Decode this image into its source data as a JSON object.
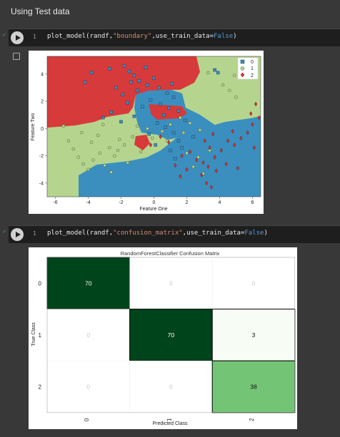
{
  "section_title": "Using Test data",
  "cells": [
    {
      "line_no": "1",
      "code_prefix": "plot_model(randf,",
      "code_str": "\"boundary\"",
      "code_mid": ",use_train_data=",
      "code_kw": "False",
      "code_suffix": ")"
    },
    {
      "line_no": "1",
      "code_prefix": "plot_model(randf,",
      "code_str": "\"confusion_matrix\"",
      "code_mid": ",use_train_data=",
      "code_kw": "False",
      "code_suffix": ")"
    }
  ],
  "colors": {
    "class0": "#3a8fbf",
    "class1": "#b5d58f",
    "class2": "#d63a3a",
    "cm_dark": "#00441b",
    "cm_light": "#f7fcf5",
    "cm_mid": "#74c476"
  },
  "chart_data": [
    {
      "type": "scatter",
      "title": "",
      "xlabel": "Feature One",
      "ylabel": "Feature Two",
      "xlim": [
        -6.5,
        6.5
      ],
      "ylim": [
        -5,
        5.3
      ],
      "xticks": [
        "-6",
        "-4",
        "-2",
        "0",
        "2",
        "4",
        "6"
      ],
      "yticks": [
        "4",
        "2",
        "0",
        "-2",
        "-4"
      ],
      "legend_position": "top-right",
      "legend": [
        "0",
        "1",
        "2"
      ],
      "series": [
        {
          "name": "0",
          "marker": "square",
          "points": [
            [
              -1.8,
              4.6
            ],
            [
              -1.5,
              4.2
            ],
            [
              -1.2,
              3.9
            ],
            [
              -0.9,
              3.5
            ],
            [
              -0.4,
              3.2
            ],
            [
              0.3,
              3.0
            ],
            [
              0.8,
              2.6
            ],
            [
              1.2,
              2.3
            ],
            [
              -2.3,
              3.0
            ],
            [
              -1.0,
              2.8
            ],
            [
              -0.2,
              2.1
            ],
            [
              0.4,
              1.8
            ],
            [
              0.9,
              1.5
            ],
            [
              1.5,
              1.3
            ],
            [
              -1.6,
              1.9
            ],
            [
              -0.7,
              1.6
            ],
            [
              -1.2,
              0.9
            ],
            [
              -2.0,
              0.5
            ],
            [
              0.2,
              0.4
            ],
            [
              0.7,
              0.1
            ],
            [
              1.2,
              -0.3
            ],
            [
              1.5,
              -0.9
            ],
            [
              1.0,
              -1.6
            ],
            [
              1.3,
              -2.2
            ],
            [
              -3.8,
              4.1
            ],
            [
              -4.2,
              3.4
            ],
            [
              -2.7,
              4.4
            ],
            [
              -0.5,
              4.5
            ],
            [
              0.0,
              3.7
            ],
            [
              -1.9,
              2.5
            ],
            [
              0.6,
              1.0
            ],
            [
              -0.3,
              -0.4
            ],
            [
              1.9,
              0.6
            ],
            [
              3.7,
              4.3
            ],
            [
              3.9,
              4.1
            ],
            [
              1.1,
              3.3
            ],
            [
              -2.6,
              1.2
            ],
            [
              0.1,
              -1.2
            ],
            [
              1.7,
              -1.4
            ],
            [
              2.4,
              -0.6
            ],
            [
              -1.4,
              3.4
            ],
            [
              -3.1,
              0.8
            ]
          ]
        },
        {
          "name": "1",
          "marker": "circle",
          "points": [
            [
              -4.6,
              -2.1
            ],
            [
              -4.3,
              -2.6
            ],
            [
              -4.0,
              -3.0
            ],
            [
              -3.7,
              -2.3
            ],
            [
              -3.3,
              -1.8
            ],
            [
              -3.0,
              -2.7
            ],
            [
              -2.7,
              -1.4
            ],
            [
              -2.4,
              -2.0
            ],
            [
              -2.1,
              -0.8
            ],
            [
              -1.8,
              -1.2
            ],
            [
              -4.9,
              -1.5
            ],
            [
              -5.2,
              -0.9
            ],
            [
              -3.8,
              -1.0
            ],
            [
              -3.4,
              -0.5
            ],
            [
              -2.6,
              -3.2
            ],
            [
              -1.6,
              -2.5
            ],
            [
              -1.3,
              -0.6
            ],
            [
              -0.4,
              0.0
            ],
            [
              -0.1,
              -0.7
            ],
            [
              0.5,
              -0.2
            ],
            [
              1.0,
              0.3
            ],
            [
              1.6,
              0.8
            ],
            [
              2.2,
              0.4
            ],
            [
              2.8,
              -0.1
            ],
            [
              4.2,
              3.2
            ],
            [
              4.6,
              2.8
            ],
            [
              5.0,
              2.3
            ],
            [
              4.9,
              3.9
            ],
            [
              3.3,
              4.1
            ],
            [
              -5.5,
              0.2
            ],
            [
              2.0,
              -1.8
            ],
            [
              2.4,
              -2.8
            ],
            [
              3.0,
              -3.3
            ],
            [
              2.7,
              -2.1
            ],
            [
              -4.4,
              -0.3
            ],
            [
              -3.1,
              0.3
            ],
            [
              -2.2,
              -1.6
            ],
            [
              -0.8,
              -1.7
            ],
            [
              0.8,
              -0.9
            ],
            [
              1.8,
              -0.3
            ],
            [
              3.4,
              -1.6
            ],
            [
              -1.0,
              0.2
            ]
          ]
        },
        {
          "name": "2",
          "marker": "diamond",
          "points": [
            [
              3.1,
              -0.9
            ],
            [
              3.4,
              -1.4
            ],
            [
              3.7,
              -2.1
            ],
            [
              4.1,
              -1.6
            ],
            [
              4.5,
              -0.9
            ],
            [
              4.9,
              -1.2
            ],
            [
              5.3,
              -0.7
            ],
            [
              5.7,
              -0.3
            ],
            [
              6.0,
              0.3
            ],
            [
              6.2,
              1.8
            ],
            [
              5.9,
              1.1
            ],
            [
              3.3,
              -2.8
            ],
            [
              2.9,
              -3.4
            ],
            [
              3.2,
              -4.0
            ],
            [
              3.5,
              -4.3
            ],
            [
              2.6,
              -2.3
            ],
            [
              2.2,
              -1.7
            ],
            [
              1.7,
              -2.0
            ],
            [
              1.3,
              -2.7
            ],
            [
              0.9,
              -1.0
            ],
            [
              0.4,
              -0.6
            ],
            [
              -0.2,
              -1.2
            ],
            [
              3.8,
              -3.1
            ],
            [
              4.4,
              -2.6
            ],
            [
              5.1,
              -2.9
            ],
            [
              6.1,
              -1.4
            ],
            [
              6.4,
              0.8
            ],
            [
              2.0,
              -3.0
            ],
            [
              1.6,
              -3.5
            ],
            [
              3.0,
              -2.5
            ],
            [
              4.8,
              -0.2
            ],
            [
              3.6,
              -0.4
            ]
          ]
        }
      ]
    },
    {
      "type": "heatmap",
      "title": "RandomForestClassifier Confusion Matrix",
      "xlabel": "Predicted Class",
      "ylabel": "True Class",
      "row_labels": [
        "0",
        "1",
        "2"
      ],
      "col_labels": [
        "0",
        "1",
        "2"
      ],
      "values": [
        [
          70,
          0,
          0
        ],
        [
          0,
          70,
          3
        ],
        [
          0,
          0,
          38
        ]
      ]
    }
  ]
}
